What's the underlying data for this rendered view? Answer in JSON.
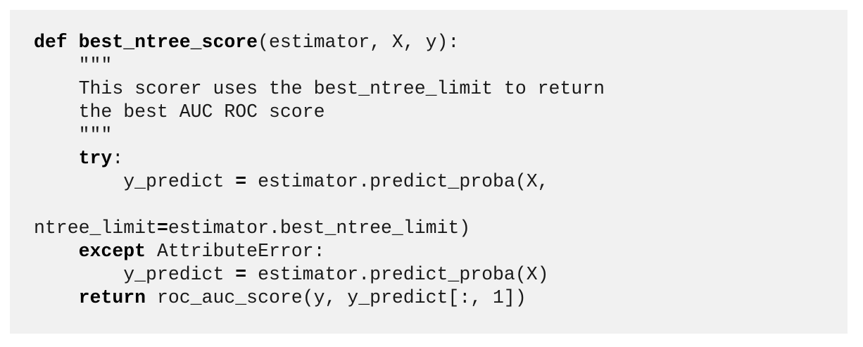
{
  "code": {
    "line1": {
      "kw_def": "def",
      "space": " ",
      "fn_name": "best_ntree_score",
      "rest": "(estimator, X, y):"
    },
    "line2": {
      "indent": "    ",
      "text": "\"\"\""
    },
    "line3": {
      "indent": "    ",
      "text": "This scorer uses the best_ntree_limit to return"
    },
    "line4": {
      "indent": "    ",
      "text": "the best AUC ROC score"
    },
    "line5": {
      "indent": "    ",
      "text": "\"\"\""
    },
    "line6": {
      "indent": "    ",
      "kw_try": "try",
      "rest": ":"
    },
    "line7": {
      "indent": "        ",
      "lhs": "y_predict ",
      "op": "=",
      "rhs": " estimator.predict_proba(X,"
    },
    "line8": {
      "text": ""
    },
    "line9": {
      "lhs": "ntree_limit",
      "op": "=",
      "rhs": "estimator.best_ntree_limit)"
    },
    "line10": {
      "indent": "    ",
      "kw_except": "except",
      "rest": " AttributeError:"
    },
    "line11": {
      "indent": "        ",
      "lhs": "y_predict ",
      "op": "=",
      "rhs": " estimator.predict_proba(X)"
    },
    "line12": {
      "indent": "    ",
      "kw_return": "return",
      "rest": " roc_auc_score(y, y_predict[:, 1])"
    }
  }
}
